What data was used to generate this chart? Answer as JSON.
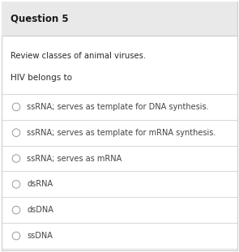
{
  "title": "Question 5",
  "instruction": "Review classes of animal viruses.",
  "question": "HIV belongs to",
  "options": [
    "ssRNA; serves as template for DNA synthesis.",
    "ssRNA; serves as template for mRNA synthesis.",
    "ssRNA; serves as mRNA",
    "dsRNA",
    "dsDNA",
    "ssDNA"
  ],
  "title_bg": "#e9e9e9",
  "body_bg": "#ffffff",
  "title_color": "#1a1a1a",
  "text_color": "#2a2a2a",
  "option_color": "#444444",
  "border_color": "#c8c8c8",
  "title_fontsize": 8.5,
  "instruction_fontsize": 7.2,
  "question_fontsize": 7.5,
  "option_fontsize": 7.0,
  "fig_width": 2.95,
  "fig_height": 3.11,
  "dpi": 100
}
